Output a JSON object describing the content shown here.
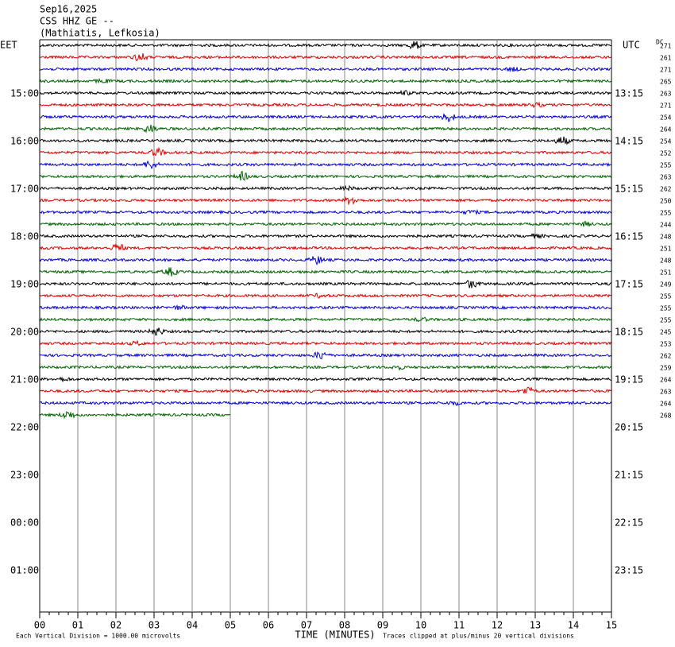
{
  "chart_data": {
    "type": "helicorder",
    "title": "Sep16,2025",
    "subtitle": "CSS HHZ GE --",
    "location": "(Mathiatis, Lefkosia)",
    "left_timezone": "EET",
    "right_timezone": "UTC",
    "dc_label": "DC",
    "left_hour_labels": [
      "15:00",
      "16:00",
      "17:00",
      "18:00",
      "19:00",
      "20:00",
      "21:00",
      "22:00",
      "23:00",
      "00:00",
      "01:00"
    ],
    "right_hour_labels": [
      "13:15",
      "14:15",
      "15:15",
      "16:15",
      "17:15",
      "18:15",
      "19:15",
      "20:15",
      "21:15",
      "22:15",
      "23:15"
    ],
    "dc_values": [
      271,
      261,
      271,
      265,
      263,
      271,
      254,
      264,
      254,
      252,
      255,
      263,
      262,
      250,
      255,
      244,
      248,
      251,
      248,
      251,
      249,
      255,
      255,
      255,
      245,
      253,
      262,
      259,
      264,
      263,
      264,
      268
    ],
    "xlim": [
      0,
      15
    ],
    "xticks": [
      {
        "value": 0,
        "label": "00"
      },
      {
        "value": 1,
        "label": "01"
      },
      {
        "value": 2,
        "label": "02"
      },
      {
        "value": 3,
        "label": "03"
      },
      {
        "value": 4,
        "label": "04"
      },
      {
        "value": 5,
        "label": "05"
      },
      {
        "value": 6,
        "label": "06"
      },
      {
        "value": 7,
        "label": "07"
      },
      {
        "value": 8,
        "label": "08"
      },
      {
        "value": 9,
        "label": "09"
      },
      10,
      11,
      12,
      13,
      14,
      15
    ],
    "xlabel": "TIME (MINUTES)",
    "scale_note": "Each Vertical Division = 1000.00 microvolts",
    "clip_note": "Traces clipped at plus/minus 20 vertical divisions",
    "colors": [
      "#000000",
      "#e00000",
      "#0000e0",
      "#006400"
    ]
  }
}
